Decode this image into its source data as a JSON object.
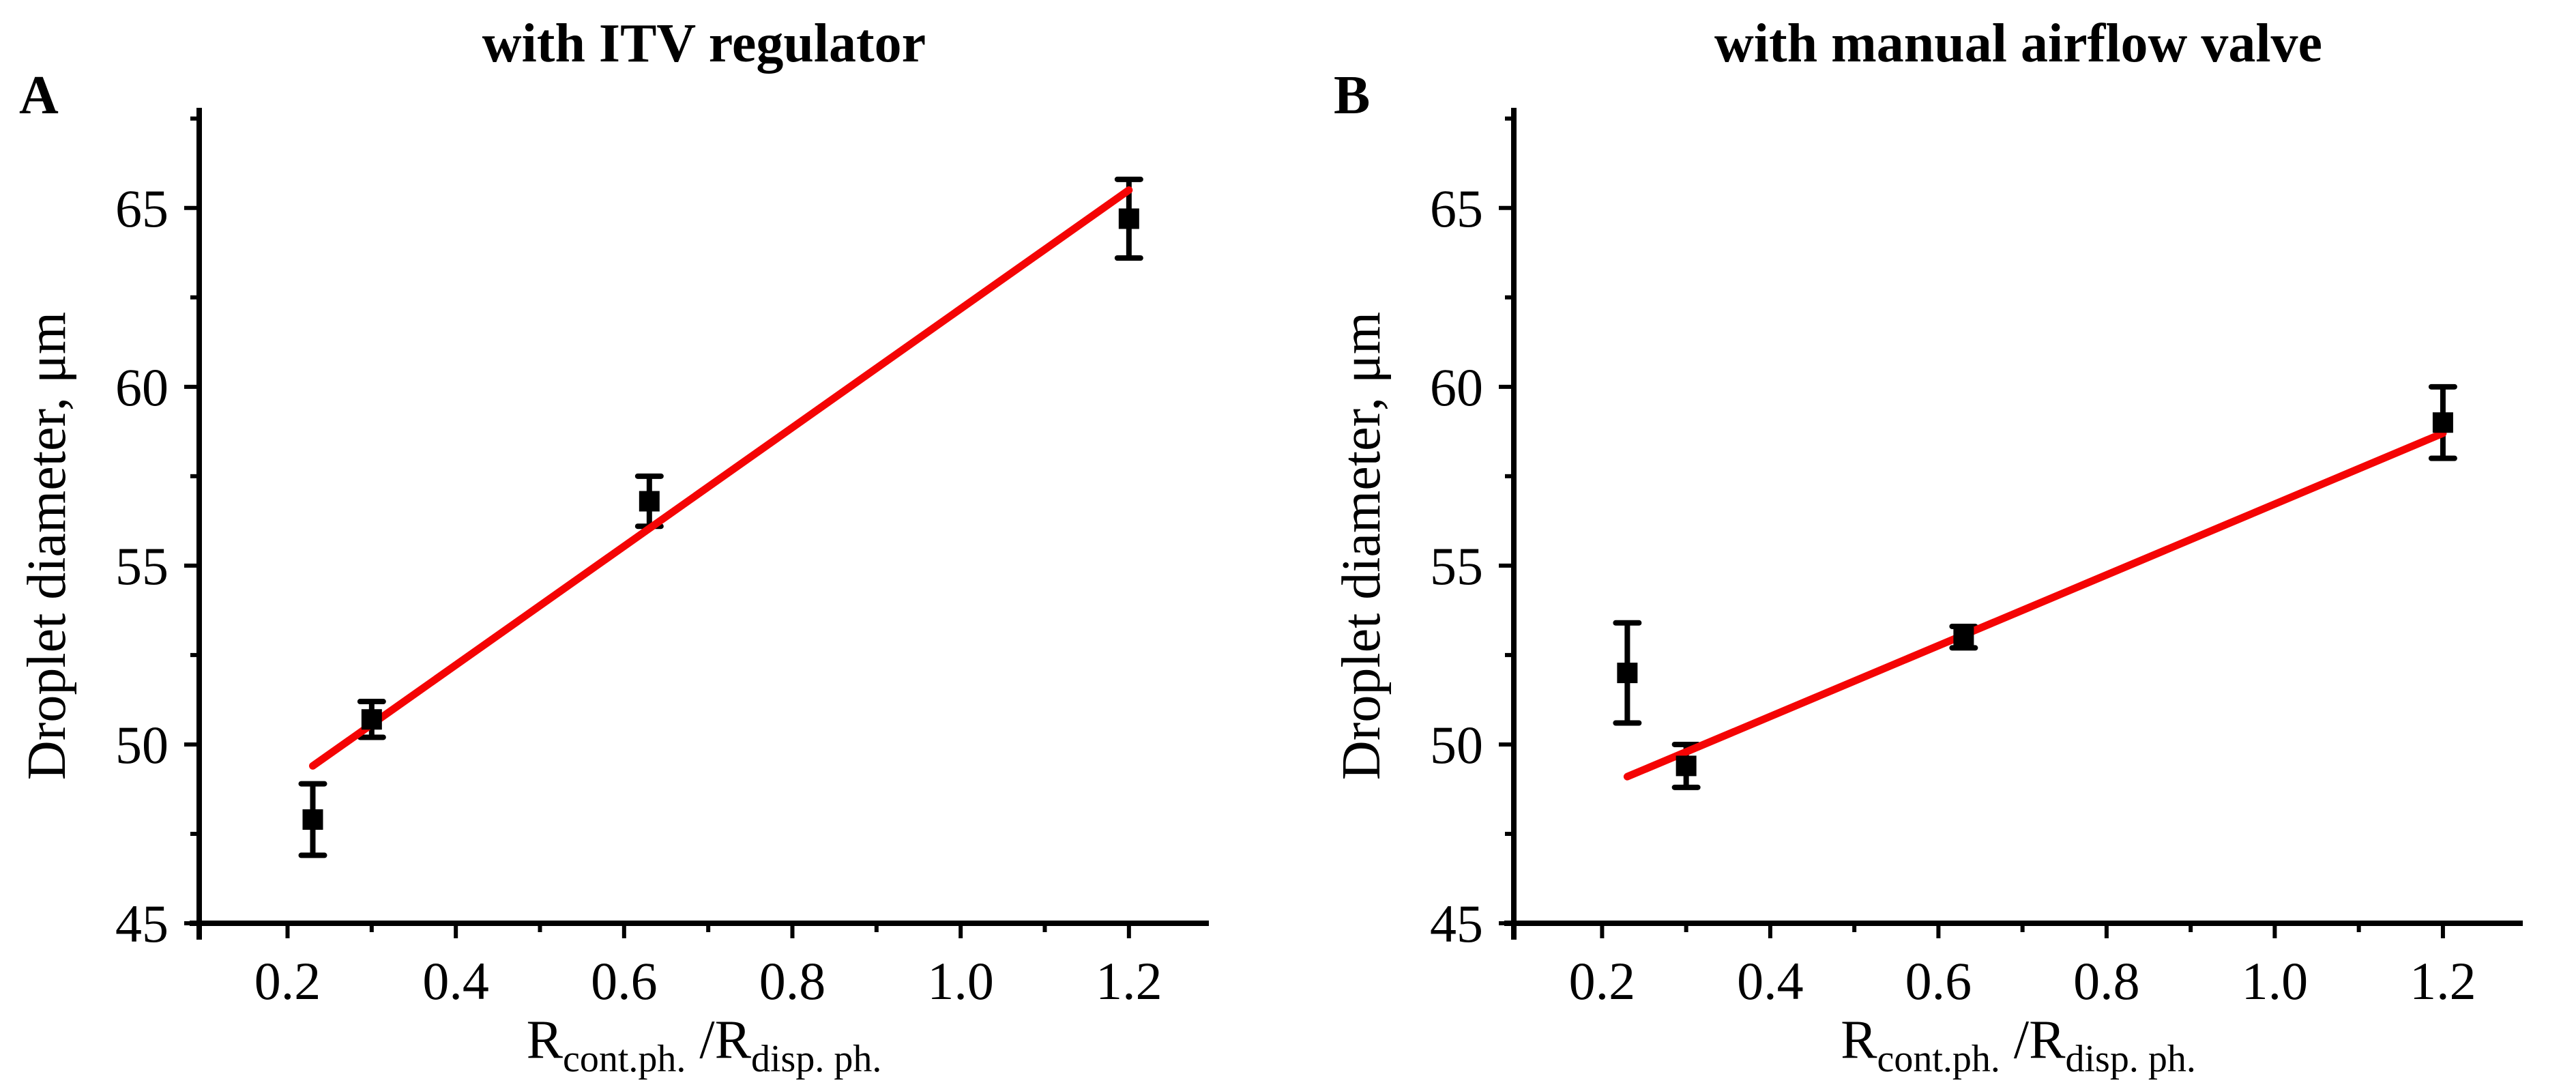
{
  "colors": {
    "axis": "#000000",
    "marker": "#000000",
    "fit_line": "#f40404",
    "background": "#ffffff"
  },
  "chart_data": [
    {
      "type": "scatter",
      "panel_label": "A",
      "title": "with ITV regulator",
      "ylabel": "Droplet diameter, μm",
      "xlabel_parts": [
        {
          "text": "R",
          "sub": false
        },
        {
          "text": "cont.ph.",
          "sub": true
        },
        {
          "text": " /R",
          "sub": false
        },
        {
          "text": "disp. ph.",
          "sub": true
        }
      ],
      "xlim": [
        0.095,
        1.295
      ],
      "ylim": [
        45,
        67.8
      ],
      "x_major_ticks": [
        {
          "value": 0.2,
          "label": "0.2"
        },
        {
          "value": 0.4,
          "label": "0.4"
        },
        {
          "value": 0.6,
          "label": "0.6"
        },
        {
          "value": 0.8,
          "label": "0.8"
        },
        {
          "value": 1.0,
          "label": "1.0"
        },
        {
          "value": 1.2,
          "label": "1.2"
        }
      ],
      "x_minor_ticks": [
        0.3,
        0.5,
        0.7,
        0.9,
        1.1
      ],
      "y_major_ticks": [
        {
          "value": 45,
          "label": "45"
        },
        {
          "value": 50,
          "label": "50"
        },
        {
          "value": 55,
          "label": "55"
        },
        {
          "value": 60,
          "label": "60"
        },
        {
          "value": 65,
          "label": "65"
        }
      ],
      "y_minor_ticks": [
        47.5,
        52.5,
        57.5,
        62.5,
        67.5
      ],
      "points": [
        {
          "x": 0.23,
          "y": 47.9,
          "err": 1.0
        },
        {
          "x": 0.3,
          "y": 50.7,
          "err": 0.5
        },
        {
          "x": 0.63,
          "y": 56.8,
          "err": 0.7
        },
        {
          "x": 1.2,
          "y": 64.7,
          "err": 1.1
        }
      ],
      "fit_line": {
        "x1": 0.23,
        "y1": 49.4,
        "x2": 1.2,
        "y2": 65.5
      }
    },
    {
      "type": "scatter",
      "panel_label": "B",
      "title": "with manual airflow valve",
      "ylabel": "Droplet diameter, μm",
      "xlabel_parts": [
        {
          "text": "R",
          "sub": false
        },
        {
          "text": "cont.ph.",
          "sub": true
        },
        {
          "text": " /R",
          "sub": false
        },
        {
          "text": "disp. ph.",
          "sub": true
        }
      ],
      "xlim": [
        0.095,
        1.295
      ],
      "ylim": [
        45,
        67.8
      ],
      "x_major_ticks": [
        {
          "value": 0.2,
          "label": "0.2"
        },
        {
          "value": 0.4,
          "label": "0.4"
        },
        {
          "value": 0.6,
          "label": "0.6"
        },
        {
          "value": 0.8,
          "label": "0.8"
        },
        {
          "value": 1.0,
          "label": "1.0"
        },
        {
          "value": 1.2,
          "label": "1.2"
        }
      ],
      "x_minor_ticks": [
        0.3,
        0.5,
        0.7,
        0.9,
        1.1
      ],
      "y_major_ticks": [
        {
          "value": 45,
          "label": "45"
        },
        {
          "value": 50,
          "label": "50"
        },
        {
          "value": 55,
          "label": "55"
        },
        {
          "value": 60,
          "label": "60"
        },
        {
          "value": 65,
          "label": "65"
        }
      ],
      "y_minor_ticks": [
        47.5,
        52.5,
        57.5,
        62.5,
        67.5
      ],
      "points": [
        {
          "x": 0.23,
          "y": 52.0,
          "err": 1.4
        },
        {
          "x": 0.3,
          "y": 49.4,
          "err": 0.6
        },
        {
          "x": 0.63,
          "y": 53.0,
          "err": 0.3
        },
        {
          "x": 1.2,
          "y": 59.0,
          "err": 1.0
        }
      ],
      "fit_line": {
        "x1": 0.23,
        "y1": 49.1,
        "x2": 1.2,
        "y2": 58.7
      }
    }
  ]
}
